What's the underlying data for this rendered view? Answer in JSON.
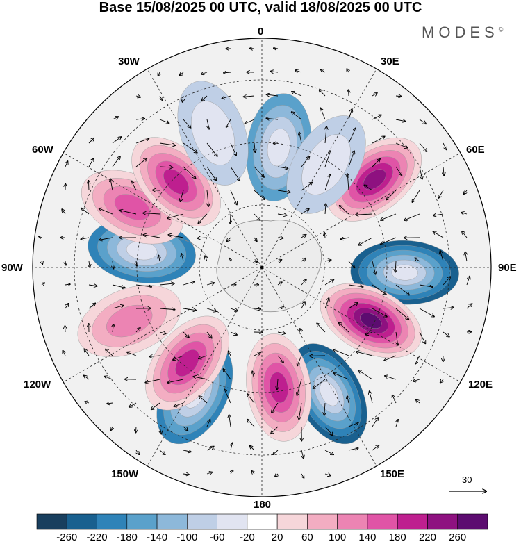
{
  "title": "Base 15/08/2025 00 UTC, valid 18/08/2025 00 UTC",
  "brand": "MODES",
  "brand_mark": "©",
  "longitude_labels": {
    "0": "0",
    "30E": "30E",
    "60E": "60E",
    "90E": "90E",
    "120E": "120E",
    "150E": "150E",
    "180": "180",
    "150W": "150W",
    "120W": "120W",
    "90W": "90W",
    "60W": "60W",
    "30W": "30W"
  },
  "reference_vector": {
    "label": "30"
  },
  "colorbar": {
    "labels": [
      "-260",
      "-220",
      "-180",
      "-140",
      "-100",
      "-60",
      "-20",
      "20",
      "60",
      "100",
      "140",
      "180",
      "220",
      "260"
    ],
    "colors": [
      "#193f5e",
      "#19608f",
      "#2f83b8",
      "#5aa1cb",
      "#8db8da",
      "#bfcfe6",
      "#e1e4f1",
      "#ffffff",
      "#f6d6da",
      "#f3adc2",
      "#ec84b3",
      "#e054a6",
      "#be1f8f",
      "#8e1180",
      "#5c0c70"
    ]
  },
  "chart_data": {
    "type": "heatmap",
    "projection": "south polar stereographic",
    "field": "anomaly",
    "base_time": "15/08/2025 00 UTC",
    "valid_time": "18/08/2025 00 UTC",
    "contour_levels": [
      -260,
      -220,
      -180,
      -140,
      -100,
      -60,
      -20,
      20,
      60,
      100,
      140,
      180,
      220,
      260
    ],
    "reference_vector": 30,
    "anomaly_centers": [
      {
        "lon": 8,
        "value": -160
      },
      {
        "lon": 52,
        "value": 240
      },
      {
        "lon": 32,
        "value": -80
      },
      {
        "lon": 92,
        "value": -230
      },
      {
        "lon": 116,
        "value": 270
      },
      {
        "lon": 152,
        "value": -240
      },
      {
        "lon": 172,
        "value": 210
      },
      {
        "lon": -152,
        "value": -210
      },
      {
        "lon": -142,
        "value": 200
      },
      {
        "lon": -112,
        "value": 120
      },
      {
        "lon": -82,
        "value": -200
      },
      {
        "lon": -65,
        "value": 160
      },
      {
        "lon": -45,
        "value": 200
      },
      {
        "lon": -20,
        "value": -90
      }
    ]
  }
}
